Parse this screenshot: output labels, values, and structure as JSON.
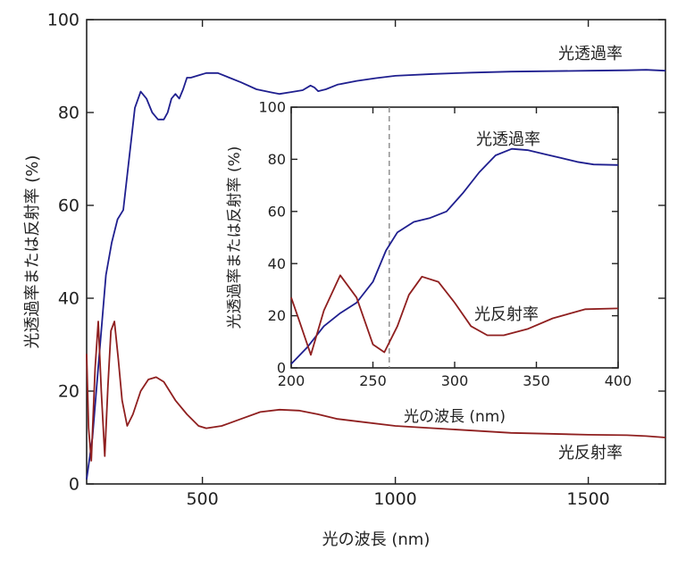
{
  "chart_data": [
    {
      "type": "line",
      "title": "",
      "xlabel": "光の波長 (nm)",
      "ylabel": "光透過率または反射率 (%)",
      "xlim": [
        200,
        1700
      ],
      "ylim": [
        0,
        100
      ],
      "xticks": [
        "500",
        "1000",
        "1500"
      ],
      "yticks": [
        "0",
        "20",
        "40",
        "60",
        "80",
        "100"
      ],
      "series": [
        {
          "name": "光透過率",
          "color": "#1f1f8f",
          "points": [
            [
              200,
              1
            ],
            [
              215,
              10
            ],
            [
              235,
              30
            ],
            [
              250,
              45
            ],
            [
              265,
              52
            ],
            [
              280,
              57
            ],
            [
              295,
              59
            ],
            [
              310,
              70
            ],
            [
              325,
              81
            ],
            [
              340,
              84.5
            ],
            [
              355,
              83
            ],
            [
              370,
              80
            ],
            [
              385,
              78.5
            ],
            [
              400,
              78.5
            ],
            [
              410,
              80
            ],
            [
              420,
              83
            ],
            [
              430,
              84
            ],
            [
              440,
              83
            ],
            [
              450,
              85
            ],
            [
              460,
              87.5
            ],
            [
              470,
              87.5
            ],
            [
              490,
              88
            ],
            [
              510,
              88.5
            ],
            [
              540,
              88.5
            ],
            [
              570,
              87.5
            ],
            [
              600,
              86.5
            ],
            [
              640,
              85
            ],
            [
              680,
              84.3
            ],
            [
              700,
              84
            ],
            [
              730,
              84.4
            ],
            [
              760,
              84.8
            ],
            [
              780,
              85.8
            ],
            [
              790,
              85.4
            ],
            [
              800,
              84.6
            ],
            [
              820,
              85
            ],
            [
              850,
              86
            ],
            [
              900,
              86.8
            ],
            [
              950,
              87.4
            ],
            [
              1000,
              87.9
            ],
            [
              1100,
              88.3
            ],
            [
              1200,
              88.6
            ],
            [
              1300,
              88.8
            ],
            [
              1400,
              88.9
            ],
            [
              1500,
              89
            ],
            [
              1600,
              89.1
            ],
            [
              1650,
              89.2
            ],
            [
              1700,
              89
            ]
          ]
        },
        {
          "name": "光反射率",
          "color": "#8f1f1f",
          "points": [
            [
              200,
              28
            ],
            [
              205,
              12
            ],
            [
              212,
              5
            ],
            [
              222,
              25
            ],
            [
              230,
              35
            ],
            [
              238,
              20
            ],
            [
              247,
              6
            ],
            [
              255,
              21
            ],
            [
              263,
              33
            ],
            [
              272,
              35
            ],
            [
              282,
              27
            ],
            [
              292,
              18
            ],
            [
              305,
              12.5
            ],
            [
              320,
              15
            ],
            [
              340,
              20
            ],
            [
              360,
              22.5
            ],
            [
              380,
              23
            ],
            [
              400,
              22
            ],
            [
              430,
              18
            ],
            [
              460,
              15
            ],
            [
              490,
              12.5
            ],
            [
              510,
              12
            ],
            [
              550,
              12.5
            ],
            [
              600,
              14
            ],
            [
              650,
              15.5
            ],
            [
              700,
              16
            ],
            [
              750,
              15.8
            ],
            [
              800,
              15
            ],
            [
              850,
              14
            ],
            [
              900,
              13.5
            ],
            [
              1000,
              12.5
            ],
            [
              1100,
              12
            ],
            [
              1200,
              11.5
            ],
            [
              1300,
              11
            ],
            [
              1400,
              10.8
            ],
            [
              1500,
              10.6
            ],
            [
              1600,
              10.5
            ],
            [
              1650,
              10.3
            ],
            [
              1700,
              10
            ]
          ]
        }
      ]
    },
    {
      "type": "line",
      "title": "inset",
      "xlabel": "光の波長 (nm)",
      "ylabel": "光透過率または反射率 (%)",
      "xlim": [
        200,
        400
      ],
      "ylim": [
        0,
        100
      ],
      "xticks": [
        "200",
        "250",
        "300",
        "350",
        "400"
      ],
      "yticks": [
        "0",
        "20",
        "40",
        "60",
        "80",
        "100"
      ],
      "reference_line_x": 260,
      "series": [
        {
          "name": "光透過率",
          "color": "#1f1f8f",
          "points": [
            [
              200,
              1.5
            ],
            [
              210,
              8
            ],
            [
              220,
              16
            ],
            [
              230,
              21
            ],
            [
              240,
              25
            ],
            [
              250,
              33
            ],
            [
              258,
              45
            ],
            [
              265,
              52
            ],
            [
              275,
              56
            ],
            [
              285,
              57.5
            ],
            [
              295,
              60
            ],
            [
              305,
              67
            ],
            [
              315,
              75
            ],
            [
              325,
              81.5
            ],
            [
              335,
              84
            ],
            [
              345,
              83.5
            ],
            [
              355,
              82
            ],
            [
              365,
              80.5
            ],
            [
              375,
              79
            ],
            [
              385,
              78
            ],
            [
              400,
              77.8
            ]
          ]
        },
        {
          "name": "光反射率",
          "color": "#8f1f1f",
          "points": [
            [
              200,
              27
            ],
            [
              205,
              18
            ],
            [
              212,
              5
            ],
            [
              220,
              22
            ],
            [
              230,
              35.5
            ],
            [
              240,
              27
            ],
            [
              250,
              9
            ],
            [
              257,
              6
            ],
            [
              265,
              16
            ],
            [
              272,
              28
            ],
            [
              280,
              35
            ],
            [
              290,
              33
            ],
            [
              300,
              25
            ],
            [
              310,
              16
            ],
            [
              320,
              12.5
            ],
            [
              330,
              12.5
            ],
            [
              345,
              15
            ],
            [
              360,
              19
            ],
            [
              380,
              22.5
            ],
            [
              400,
              22.8
            ]
          ]
        }
      ]
    }
  ]
}
